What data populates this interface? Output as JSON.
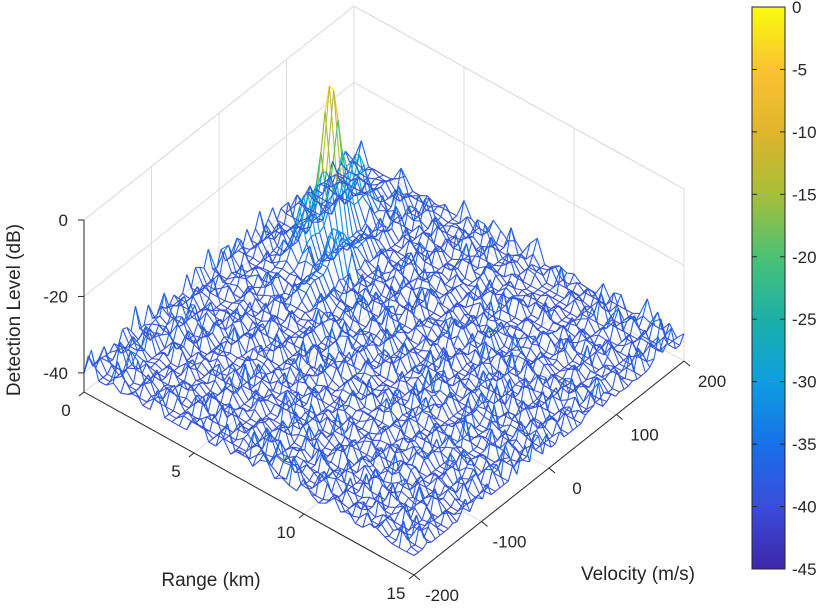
{
  "chart_data": {
    "type": "surface",
    "xlabel": "Range (km)",
    "ylabel": "Velocity (m/s)",
    "zlabel": "Detection Level (dB)",
    "xlim": [
      0,
      15
    ],
    "ylim": [
      -200,
      200
    ],
    "zlim": [
      -45,
      0
    ],
    "xticks": [
      0,
      5,
      10,
      15
    ],
    "yticks": [
      -200,
      -100,
      0,
      100,
      200
    ],
    "zticks": [
      -40,
      -20,
      0
    ],
    "grid": true,
    "colormap": "parula",
    "noise_floor_db": -40,
    "peaks": [
      {
        "range_km": 2.0,
        "velocity_mps": 100,
        "level_db": 0
      },
      {
        "range_km": 3.5,
        "velocity_mps": 60,
        "level_db": -25
      }
    ],
    "colorbar": {
      "ticks": [
        "0",
        "-5",
        "-10",
        "-15",
        "-20",
        "-25",
        "-30",
        "-35",
        "-40",
        "-45"
      ],
      "stops": [
        "#f9fb0e",
        "#fbc330",
        "#e0b52c",
        "#a7be38",
        "#4bc274",
        "#1bb0a8",
        "#0e9ee0",
        "#1870e8",
        "#3a4ddb",
        "#3e26a8"
      ]
    }
  }
}
